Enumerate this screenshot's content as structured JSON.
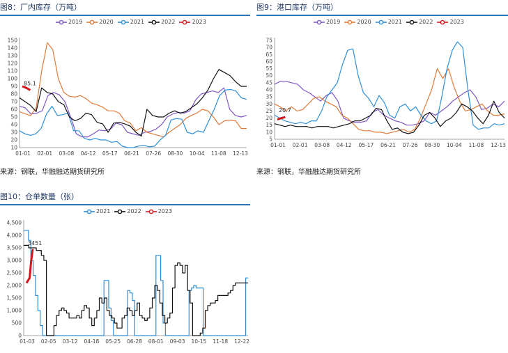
{
  "figures": [
    {
      "title": "图8：厂内库存（万吨）",
      "source": "来源：钢联，华融融达期货研究所"
    },
    {
      "title": "图9：港口库存（万吨）",
      "source": "来源：钢联，华融融达期货研究所"
    },
    {
      "title": "图10：仓单数量（张）",
      "source": ""
    }
  ],
  "chart_data": [
    {
      "type": "line",
      "title": "",
      "xlabel": "",
      "ylabel": "",
      "x_ticks": [
        "01-01",
        "02-01",
        "03-08",
        "04-12",
        "05-17",
        "06-21",
        "07-26",
        "08-30",
        "10-04",
        "11-08",
        "12-13"
      ],
      "y_ticks": [
        10,
        20,
        30,
        40,
        50,
        60,
        70,
        80,
        90,
        100,
        110,
        120,
        130,
        140,
        150
      ],
      "ylim": [
        10,
        150
      ],
      "grid": false,
      "legend_position": "top",
      "annotations": [
        {
          "text": "85.1",
          "series": "2023"
        }
      ],
      "series": [
        {
          "name": "2019",
          "color": "#7f56c5",
          "values": [
            64,
            62,
            54,
            55,
            58,
            78,
            82,
            79,
            70,
            50,
            28,
            24,
            24,
            28,
            33,
            32,
            34,
            42,
            40,
            30,
            28,
            26,
            30,
            31,
            34,
            40,
            50,
            54,
            56,
            55,
            58,
            72,
            80,
            82,
            84,
            82,
            88,
            60,
            52,
            50,
            52
          ]
        },
        {
          "name": "2020",
          "color": "#e07b39",
          "values": [
            57,
            54,
            52,
            62,
            110,
            147,
            138,
            100,
            82,
            77,
            76,
            78,
            74,
            68,
            66,
            63,
            58,
            58,
            55,
            45,
            42,
            32,
            36,
            30,
            28,
            26,
            24,
            30,
            35,
            40,
            48,
            52,
            55,
            60,
            58,
            50,
            40,
            45,
            46,
            45,
            35,
            35
          ]
        },
        {
          "name": "2021",
          "color": "#2e8fd8",
          "values": [
            32,
            28,
            26,
            28,
            35,
            54,
            64,
            52,
            53,
            55,
            32,
            32,
            22,
            20,
            22,
            20,
            20,
            17,
            18,
            12,
            10,
            10,
            12,
            13,
            11,
            12,
            20,
            26,
            46,
            48,
            47,
            30,
            28,
            32,
            30,
            45,
            60,
            78,
            85,
            86,
            84,
            75,
            73
          ]
        },
        {
          "name": "2022",
          "color": "#111111",
          "values": [
            75,
            70,
            65,
            57,
            88,
            82,
            80,
            70,
            66,
            50,
            45,
            48,
            55,
            53,
            43,
            41,
            30,
            42,
            43,
            41,
            38,
            30,
            25,
            60,
            52,
            50,
            50,
            55,
            58,
            55,
            57,
            62,
            67,
            75,
            85,
            100,
            112,
            108,
            104,
            96,
            90,
            90
          ]
        },
        {
          "name": "2023",
          "color": "#d0181b",
          "values": [
            90,
            88,
            85.1
          ]
        }
      ]
    },
    {
      "type": "line",
      "title": "",
      "xlabel": "",
      "ylabel": "",
      "x_ticks": [
        "01-01",
        "02-01",
        "03-08",
        "04-12",
        "05-17",
        "06-21",
        "07-26",
        "08-30",
        "10-04",
        "11-08",
        "12-13"
      ],
      "y_ticks": [
        5,
        10,
        15,
        20,
        25,
        30,
        35,
        40,
        45,
        50,
        55,
        60,
        65,
        70,
        75
      ],
      "ylim": [
        5,
        75
      ],
      "grid": false,
      "legend_position": "top",
      "annotations": [
        {
          "text": "20.7",
          "series": "2023"
        }
      ],
      "series": [
        {
          "name": "2019",
          "color": "#7f56c5",
          "values": [
            44,
            46,
            46,
            45,
            44,
            40,
            38,
            35,
            32,
            36,
            38,
            32,
            20,
            18,
            17,
            17,
            18,
            24,
            26,
            22,
            20,
            18,
            17,
            15,
            15,
            16,
            18,
            24,
            22,
            25,
            28,
            32,
            35,
            38,
            40,
            35,
            26,
            27,
            30,
            28,
            32
          ]
        },
        {
          "name": "2020",
          "color": "#e07b39",
          "values": [
            30,
            28,
            25,
            28,
            25,
            26,
            30,
            34,
            35,
            32,
            30,
            28,
            22,
            20,
            16,
            12,
            11,
            11,
            10,
            10,
            9,
            10,
            11,
            12,
            10,
            12,
            20,
            30,
            40,
            55,
            48,
            55,
            42,
            32,
            25,
            26,
            28,
            30,
            25,
            22,
            22,
            23
          ]
        },
        {
          "name": "2021",
          "color": "#2e8fd8",
          "values": [
            22,
            20,
            18,
            17,
            16,
            17,
            16,
            18,
            18,
            25,
            35,
            40,
            45,
            58,
            68,
            69,
            50,
            38,
            34,
            28,
            36,
            31,
            22,
            20,
            28,
            30,
            25,
            28,
            22,
            18,
            16,
            18,
            35,
            55,
            68,
            74,
            70,
            40,
            15,
            12,
            13,
            13,
            16,
            15,
            16
          ]
        },
        {
          "name": "2022",
          "color": "#111111",
          "values": [
            16,
            15,
            14,
            15,
            14,
            14,
            14,
            13,
            14,
            14,
            14,
            13,
            14,
            15,
            16,
            18,
            18,
            20,
            22,
            27,
            26,
            18,
            12,
            13,
            10,
            9,
            10,
            15,
            22,
            24,
            20,
            14,
            18,
            20,
            24,
            30,
            28,
            25,
            20,
            16,
            22,
            32,
            24,
            20
          ]
        },
        {
          "name": "2023",
          "color": "#d0181b",
          "values": [
            19,
            20,
            20.7
          ]
        }
      ]
    },
    {
      "type": "line",
      "title": "",
      "xlabel": "",
      "ylabel": "",
      "x_ticks": [
        "01-03",
        "02-05",
        "03-12",
        "04-18",
        "05-25",
        "06-28",
        "08-01",
        "09-03",
        "10-15",
        "11-18",
        "12-22"
      ],
      "y_ticks": [
        "0",
        "500",
        "1,000",
        "1,500",
        "2,000",
        "2,500",
        "3,000",
        "3,500",
        "4,000",
        "4,500"
      ],
      "ylim": [
        0,
        4500
      ],
      "grid": false,
      "legend_position": "top",
      "annotations": [
        {
          "text": "3451",
          "series": "2023"
        }
      ],
      "series": [
        {
          "name": "2021",
          "color": "#2e8fd8",
          "values": [
            4200,
            4200,
            3800,
            3000,
            2400,
            1600,
            1000,
            400,
            0,
            0,
            0,
            0,
            0,
            0,
            0,
            0,
            0,
            0,
            0,
            0,
            0,
            0,
            0,
            0,
            0,
            0,
            0,
            0,
            0,
            0,
            0,
            0,
            0,
            0,
            2200,
            2200,
            1100,
            600,
            0,
            0,
            0,
            0,
            0,
            0,
            1800,
            1700,
            1400,
            0,
            0,
            0,
            0,
            0,
            0,
            0,
            0,
            0,
            3200,
            3200,
            2200,
            500,
            0,
            0,
            0,
            0,
            0,
            0,
            0,
            0,
            0,
            0,
            1800,
            1900,
            2000,
            1900,
            1900,
            1900,
            0,
            0,
            0,
            0,
            0,
            0,
            0,
            0,
            0,
            0,
            0,
            0,
            0,
            0,
            0,
            0,
            0,
            0,
            2300,
            2300
          ]
        },
        {
          "name": "2022",
          "color": "#111111",
          "values": [
            3600,
            3600,
            3500,
            3500,
            3500,
            3400,
            3400,
            3200,
            3000,
            0,
            0,
            0,
            400,
            800,
            1000,
            1100,
            1000,
            900,
            700,
            700,
            700,
            800,
            700,
            1000,
            1200,
            1100,
            700,
            400,
            700,
            1000,
            1500,
            1300,
            1500,
            1000,
            800,
            700,
            500,
            300,
            300,
            700,
            800,
            1100,
            1000,
            800,
            1000,
            1300,
            800,
            700,
            600,
            700,
            1100,
            1500,
            2000,
            1800,
            1300,
            800,
            500,
            700,
            900,
            1900,
            2800,
            2900,
            2800,
            2500,
            2800,
            1800,
            1300,
            0,
            0,
            0,
            100,
            300,
            1000,
            1200,
            1300,
            1300,
            1400,
            1600,
            1600,
            1600,
            1600,
            1700,
            1800,
            2000,
            2100,
            2100,
            2100,
            2100,
            2100,
            2100
          ]
        },
        {
          "name": "2023",
          "color": "#d0181b",
          "values": [
            2100,
            2200,
            2300,
            3000,
            3451
          ]
        }
      ]
    }
  ]
}
